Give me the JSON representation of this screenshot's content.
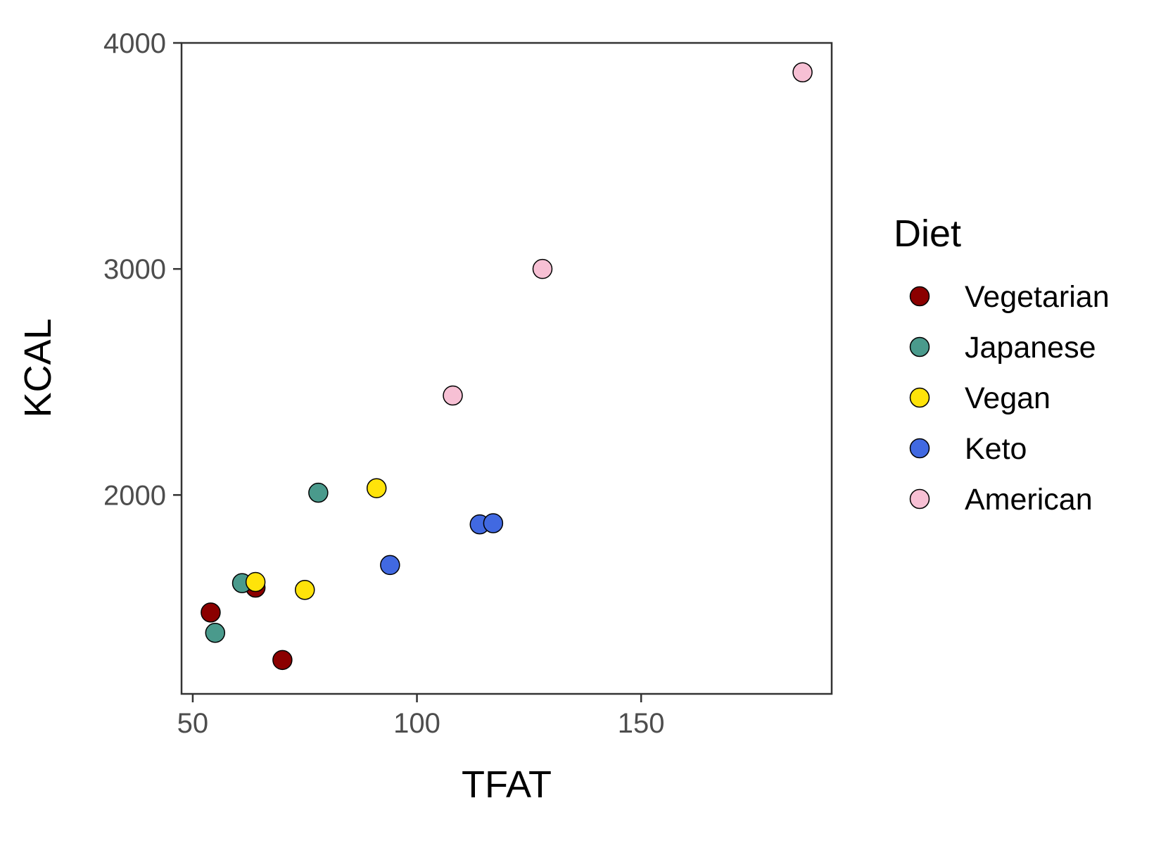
{
  "chart_data": {
    "type": "scatter",
    "xlabel": "TFAT",
    "ylabel": "KCAL",
    "xlim": [
      47.5,
      192.5
    ],
    "ylim": [
      1120,
      4000
    ],
    "x_ticks": [
      50,
      100,
      150
    ],
    "y_ticks": [
      2000,
      3000,
      4000
    ],
    "grid": false,
    "legend": {
      "title": "Diet",
      "placement": "right"
    },
    "series": [
      {
        "name": "Vegetarian",
        "color": "#8B0000",
        "points": [
          {
            "x": 54,
            "y": 1480
          },
          {
            "x": 64,
            "y": 1590
          },
          {
            "x": 70,
            "y": 1270
          }
        ]
      },
      {
        "name": "Japanese",
        "color": "#4A9A8C",
        "points": [
          {
            "x": 55,
            "y": 1390
          },
          {
            "x": 61,
            "y": 1610
          },
          {
            "x": 78,
            "y": 2010
          }
        ]
      },
      {
        "name": "Vegan",
        "color": "#FFE30A",
        "points": [
          {
            "x": 64,
            "y": 1615
          },
          {
            "x": 75,
            "y": 1580
          },
          {
            "x": 91,
            "y": 2030
          }
        ]
      },
      {
        "name": "Keto",
        "color": "#4169E1",
        "points": [
          {
            "x": 94,
            "y": 1690
          },
          {
            "x": 114,
            "y": 1870
          },
          {
            "x": 117,
            "y": 1875
          }
        ]
      },
      {
        "name": "American",
        "color": "#F7C0D4",
        "points": [
          {
            "x": 108,
            "y": 2440
          },
          {
            "x": 128,
            "y": 3000
          },
          {
            "x": 186,
            "y": 3870
          }
        ]
      }
    ]
  }
}
